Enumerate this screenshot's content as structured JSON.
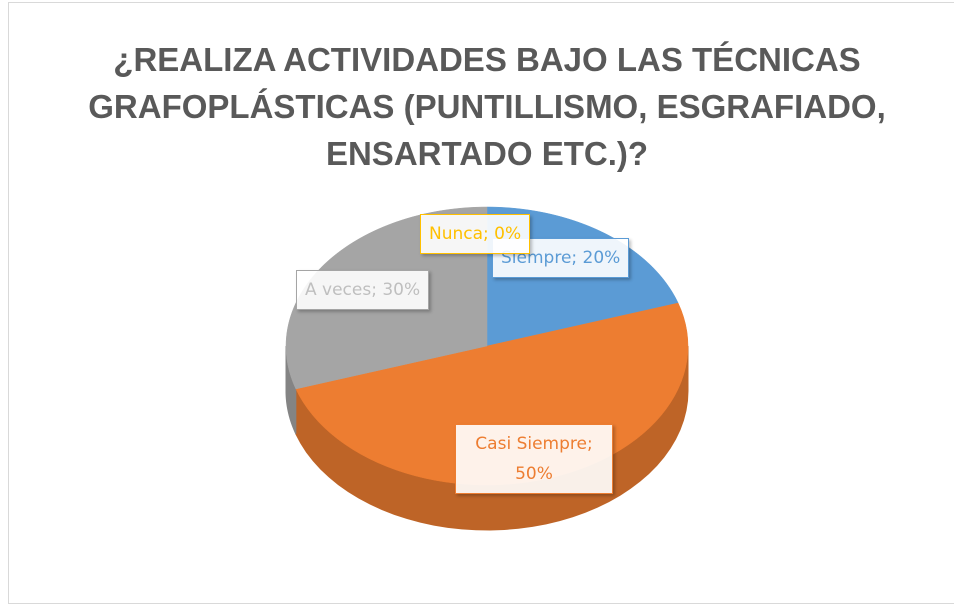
{
  "chart_data": {
    "type": "pie",
    "title": "¿REALIZA ACTIVIDADES BAJO LAS TÉCNICAS GRAFOPLÁSTICAS (PUNTILLISMO, ESGRAFIADO, ENSARTADO ETC.)?",
    "categories": [
      "Siempre",
      "Casi Siempre",
      "A veces",
      "Nunca"
    ],
    "values": [
      20,
      50,
      30,
      0
    ],
    "value_labels": [
      "Siempre; 20%",
      "Casi Siempre; 50%",
      "A veces; 30%",
      "Nunca; 0%"
    ],
    "colors": [
      "#5b9bd5",
      "#ed7d31",
      "#a5a5a5",
      "#ffc000"
    ]
  }
}
